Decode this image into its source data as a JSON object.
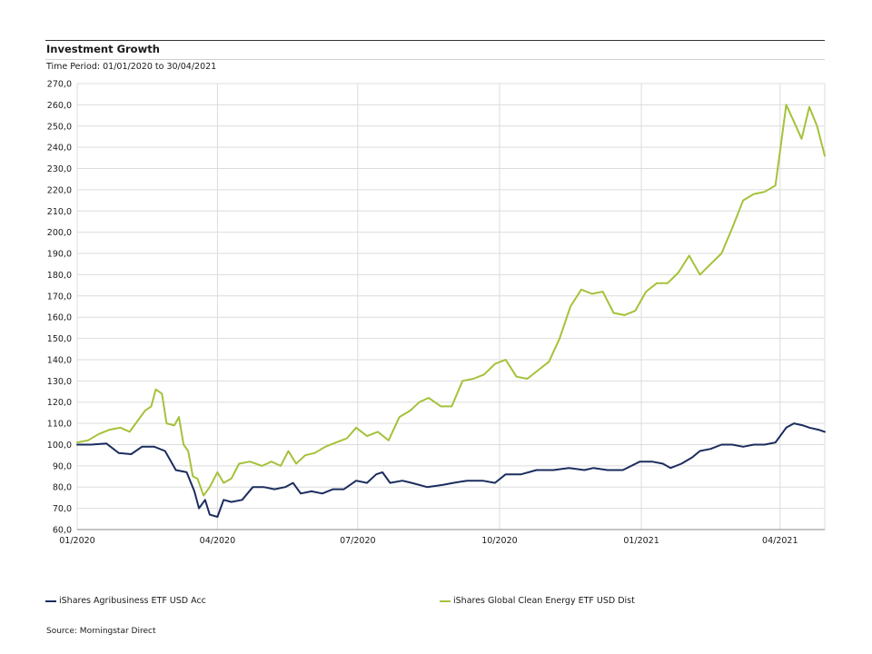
{
  "header": {
    "title": "Investment Growth",
    "period": "Time Period: 01/01/2020 to 30/04/2021"
  },
  "footer": {
    "source": "Source: Morningstar Direct"
  },
  "colors": {
    "agri": "#1b2d5e",
    "clean": "#a4c23a",
    "grid": "#dcdcdc",
    "axis": "#555555"
  },
  "chart_data": {
    "type": "line",
    "title": "Investment Growth",
    "xlabel": "",
    "ylabel": "",
    "ylim": [
      60,
      270
    ],
    "xlim": [
      "2020-01-01",
      "2021-04-30"
    ],
    "y_ticks": [
      "60,0",
      "70,0",
      "80,0",
      "90,0",
      "100,0",
      "110,0",
      "120,0",
      "130,0",
      "140,0",
      "150,0",
      "160,0",
      "170,0",
      "180,0",
      "190,0",
      "200,0",
      "210,0",
      "220,0",
      "230,0",
      "240,0",
      "250,0",
      "260,0",
      "270,0"
    ],
    "x_ticks": [
      {
        "label": "01/2020",
        "date": "2020-01-01"
      },
      {
        "label": "04/2020",
        "date": "2020-04-01"
      },
      {
        "label": "07/2020",
        "date": "2020-07-01"
      },
      {
        "label": "10/2020",
        "date": "2020-10-01"
      },
      {
        "label": "01/2021",
        "date": "2021-01-01"
      },
      {
        "label": "04/2021",
        "date": "2021-04-01"
      }
    ],
    "grid": true,
    "legend": "bottom",
    "series": [
      {
        "name": "iShares Agribusiness ETF USD Acc",
        "color": "#1b2d5e",
        "points": [
          [
            "2020-01-01",
            100
          ],
          [
            "2020-01-10",
            100
          ],
          [
            "2020-01-20",
            100.5
          ],
          [
            "2020-01-28",
            96
          ],
          [
            "2020-02-05",
            95.5
          ],
          [
            "2020-02-12",
            99
          ],
          [
            "2020-02-20",
            99
          ],
          [
            "2020-02-27",
            97
          ],
          [
            "2020-03-05",
            88
          ],
          [
            "2020-03-12",
            87
          ],
          [
            "2020-03-17",
            78
          ],
          [
            "2020-03-20",
            70
          ],
          [
            "2020-03-24",
            74
          ],
          [
            "2020-03-27",
            67
          ],
          [
            "2020-04-01",
            66
          ],
          [
            "2020-04-05",
            74
          ],
          [
            "2020-04-10",
            73
          ],
          [
            "2020-04-17",
            74
          ],
          [
            "2020-04-24",
            80
          ],
          [
            "2020-05-01",
            80
          ],
          [
            "2020-05-08",
            79
          ],
          [
            "2020-05-15",
            80
          ],
          [
            "2020-05-20",
            82
          ],
          [
            "2020-05-25",
            77
          ],
          [
            "2020-06-01",
            78
          ],
          [
            "2020-06-08",
            77
          ],
          [
            "2020-06-15",
            79
          ],
          [
            "2020-06-22",
            79
          ],
          [
            "2020-06-30",
            83
          ],
          [
            "2020-07-07",
            82
          ],
          [
            "2020-07-13",
            86
          ],
          [
            "2020-07-17",
            87
          ],
          [
            "2020-07-22",
            82
          ],
          [
            "2020-07-30",
            83
          ],
          [
            "2020-08-05",
            82
          ],
          [
            "2020-08-15",
            80
          ],
          [
            "2020-08-25",
            81
          ],
          [
            "2020-09-01",
            82
          ],
          [
            "2020-09-10",
            83
          ],
          [
            "2020-09-20",
            83
          ],
          [
            "2020-09-28",
            82
          ],
          [
            "2020-10-05",
            86
          ],
          [
            "2020-10-15",
            86
          ],
          [
            "2020-10-25",
            88
          ],
          [
            "2020-11-05",
            88
          ],
          [
            "2020-11-15",
            89
          ],
          [
            "2020-11-25",
            88
          ],
          [
            "2020-12-01",
            89
          ],
          [
            "2020-12-10",
            88
          ],
          [
            "2020-12-20",
            88
          ],
          [
            "2020-12-31",
            92
          ],
          [
            "2021-01-08",
            92
          ],
          [
            "2021-01-15",
            91
          ],
          [
            "2021-01-20",
            89
          ],
          [
            "2021-01-27",
            91
          ],
          [
            "2021-02-03",
            94
          ],
          [
            "2021-02-08",
            97
          ],
          [
            "2021-02-15",
            98
          ],
          [
            "2021-02-22",
            100
          ],
          [
            "2021-03-01",
            100
          ],
          [
            "2021-03-08",
            99
          ],
          [
            "2021-03-15",
            100
          ],
          [
            "2021-03-22",
            100
          ],
          [
            "2021-03-29",
            101
          ],
          [
            "2021-04-05",
            108
          ],
          [
            "2021-04-10",
            110
          ],
          [
            "2021-04-16",
            109
          ],
          [
            "2021-04-20",
            108
          ],
          [
            "2021-04-26",
            107
          ],
          [
            "2021-04-30",
            106
          ]
        ]
      },
      {
        "name": "iShares Global Clean Energy ETF USD Dist",
        "color": "#a4c23a",
        "points": [
          [
            "2020-01-01",
            101
          ],
          [
            "2020-01-08",
            102
          ],
          [
            "2020-01-15",
            105
          ],
          [
            "2020-01-22",
            107
          ],
          [
            "2020-01-29",
            108
          ],
          [
            "2020-02-04",
            106
          ],
          [
            "2020-02-10",
            112
          ],
          [
            "2020-02-14",
            116
          ],
          [
            "2020-02-18",
            118
          ],
          [
            "2020-02-21",
            126
          ],
          [
            "2020-02-25",
            124
          ],
          [
            "2020-02-28",
            110
          ],
          [
            "2020-03-04",
            109
          ],
          [
            "2020-03-07",
            113
          ],
          [
            "2020-03-10",
            100
          ],
          [
            "2020-03-13",
            97
          ],
          [
            "2020-03-16",
            85
          ],
          [
            "2020-03-19",
            84
          ],
          [
            "2020-03-23",
            76
          ],
          [
            "2020-03-27",
            80
          ],
          [
            "2020-04-01",
            87
          ],
          [
            "2020-04-05",
            82
          ],
          [
            "2020-04-10",
            84
          ],
          [
            "2020-04-15",
            91
          ],
          [
            "2020-04-22",
            92
          ],
          [
            "2020-04-30",
            90
          ],
          [
            "2020-05-06",
            92
          ],
          [
            "2020-05-12",
            90
          ],
          [
            "2020-05-17",
            97
          ],
          [
            "2020-05-22",
            91
          ],
          [
            "2020-05-28",
            95
          ],
          [
            "2020-06-03",
            96
          ],
          [
            "2020-06-10",
            99
          ],
          [
            "2020-06-17",
            101
          ],
          [
            "2020-06-24",
            103
          ],
          [
            "2020-06-30",
            108
          ],
          [
            "2020-07-07",
            104
          ],
          [
            "2020-07-14",
            106
          ],
          [
            "2020-07-21",
            102
          ],
          [
            "2020-07-28",
            113
          ],
          [
            "2020-08-04",
            116
          ],
          [
            "2020-08-10",
            120
          ],
          [
            "2020-08-16",
            122
          ],
          [
            "2020-08-24",
            118
          ],
          [
            "2020-08-31",
            118
          ],
          [
            "2020-09-07",
            130
          ],
          [
            "2020-09-14",
            131
          ],
          [
            "2020-09-21",
            133
          ],
          [
            "2020-09-28",
            138
          ],
          [
            "2020-10-05",
            140
          ],
          [
            "2020-10-12",
            132
          ],
          [
            "2020-10-19",
            131
          ],
          [
            "2020-10-26",
            135
          ],
          [
            "2020-11-02",
            139
          ],
          [
            "2020-11-09",
            150
          ],
          [
            "2020-11-16",
            165
          ],
          [
            "2020-11-23",
            173
          ],
          [
            "2020-11-30",
            171
          ],
          [
            "2020-12-07",
            172
          ],
          [
            "2020-12-14",
            162
          ],
          [
            "2020-12-21",
            161
          ],
          [
            "2020-12-28",
            163
          ],
          [
            "2021-01-04",
            172
          ],
          [
            "2021-01-11",
            176
          ],
          [
            "2021-01-18",
            176
          ],
          [
            "2021-01-25",
            181
          ],
          [
            "2021-02-01",
            189
          ],
          [
            "2021-02-08",
            180
          ],
          [
            "2021-02-15",
            185
          ],
          [
            "2021-02-22",
            190
          ],
          [
            "2021-03-01",
            202
          ],
          [
            "2021-03-08",
            215
          ],
          [
            "2021-03-15",
            218
          ],
          [
            "2021-03-22",
            219
          ],
          [
            "2021-03-29",
            222
          ],
          [
            "2021-04-05",
            260
          ],
          [
            "2021-04-10",
            252
          ],
          [
            "2021-04-15",
            244
          ],
          [
            "2021-04-20",
            259
          ],
          [
            "2021-04-25",
            250
          ],
          [
            "2021-04-30",
            236
          ]
        ]
      }
    ]
  }
}
